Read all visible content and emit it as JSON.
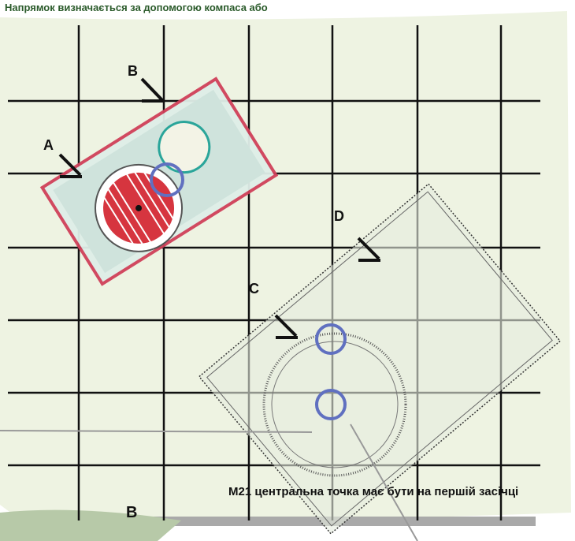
{
  "header": {
    "title": "Напрямок визначається за допомогою компаса або"
  },
  "labels": {
    "b_top": "B",
    "a": "A",
    "d": "D",
    "c": "C",
    "b_bottom": "B"
  },
  "caption": "M21 центральна точка має бути на першій засічці"
}
